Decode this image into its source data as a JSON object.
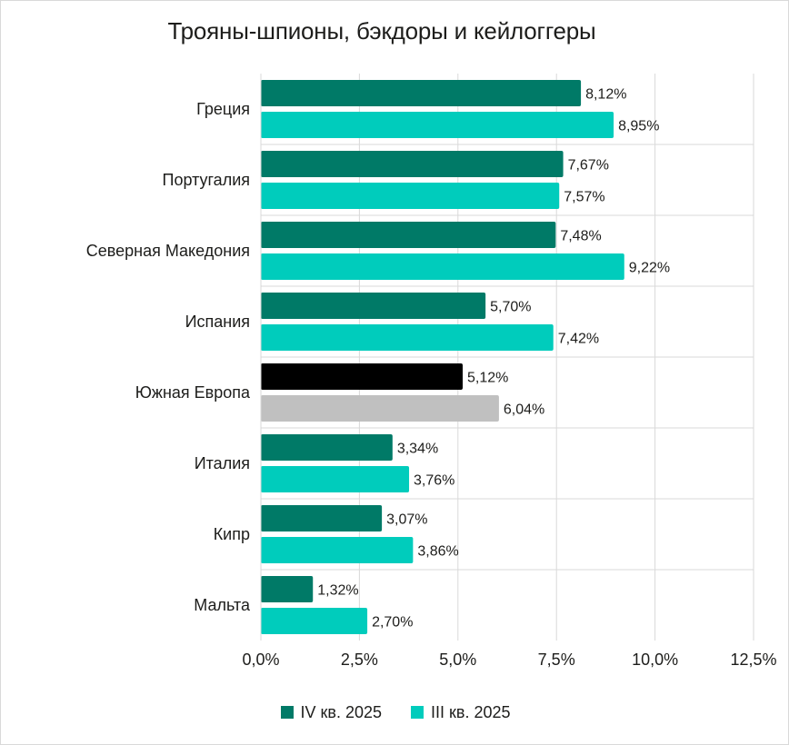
{
  "chart_data": {
    "type": "bar",
    "orientation": "horizontal",
    "title": "Трояны-шпионы, бэкдоры и кейлоггеры",
    "categories": [
      "Греция",
      "Португалия",
      "Северная Македония",
      "Испания",
      "Южная Европа",
      "Италия",
      "Кипр",
      "Мальта"
    ],
    "series": [
      {
        "name": "IV кв. 2025",
        "color": "#007a67",
        "values": [
          8.12,
          7.67,
          7.48,
          5.7,
          5.12,
          3.34,
          3.07,
          1.32
        ],
        "labels": [
          "8,12%",
          "7,67%",
          "7,48%",
          "5,70%",
          "5,12%",
          "3,34%",
          "3,07%",
          "1,32%"
        ]
      },
      {
        "name": "III кв. 2025",
        "color": "#00ccbc",
        "values": [
          8.95,
          7.57,
          9.22,
          7.42,
          6.04,
          3.76,
          3.86,
          2.7
        ],
        "labels": [
          "8,95%",
          "7,57%",
          "9,22%",
          "7,42%",
          "6,04%",
          "3,76%",
          "3,86%",
          "2,70%"
        ]
      }
    ],
    "highlight": {
      "category": "Южная Европа",
      "colors": [
        "#000000",
        "#c0c0c0"
      ]
    },
    "x_ticks": [
      0,
      2.5,
      5,
      7.5,
      10,
      12.5
    ],
    "x_tick_labels": [
      "0,0%",
      "2,5%",
      "5,0%",
      "7,5%",
      "10,0%",
      "12,5%"
    ],
    "xlim": [
      0,
      12.5
    ],
    "grid": true,
    "legend": "bottom"
  }
}
